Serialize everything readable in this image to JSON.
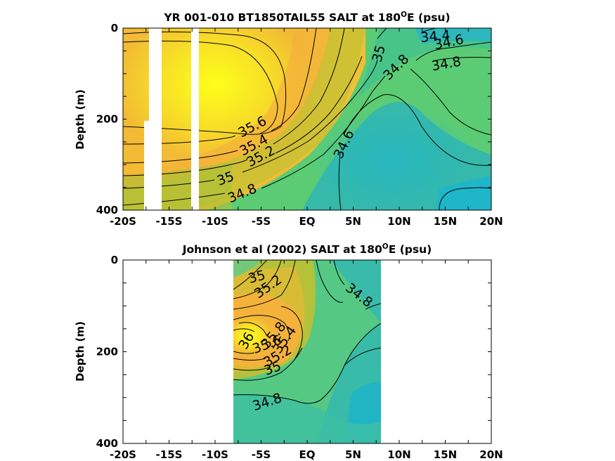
{
  "colors": {
    "salt_low": "#1fb6c9",
    "salt_mid": "#5ccc74",
    "salt_high": "#f7df27",
    "salt_peak": "#ffff1a",
    "orange": "#f4b23a",
    "mask": "#ffffff",
    "contour": "#000000"
  },
  "chart_data": [
    {
      "type": "contour",
      "title_parts": [
        "YR 001-010 BT1850TAIL55 SALT at 180",
        "O",
        "E (psu)"
      ],
      "title": "YR 001-010 BT1850TAIL55 SALT at 180OE (psu)",
      "ylabel": "Depth (m)",
      "xlim": [
        -20,
        20
      ],
      "ylim": [
        0,
        400
      ],
      "y_reversed": true,
      "xticks": [
        -20,
        -15,
        -10,
        -5,
        0,
        5,
        10,
        15,
        20
      ],
      "xtick_labels": [
        "-20S",
        "-15S",
        "-10S",
        "-5S",
        "EQ",
        "5N",
        "10N",
        "15N",
        "20N"
      ],
      "yticks": [
        0,
        200,
        400
      ],
      "ytick_labels": [
        "0",
        "200",
        "400"
      ],
      "data_extent": [
        -20,
        20
      ],
      "contour_levels": [
        34.4,
        34.6,
        34.8,
        35,
        35.2,
        35.4,
        35.6
      ],
      "contour_labels": [
        {
          "text": "34.4",
          "lat": 11.8,
          "depth": 12
        },
        {
          "text": "34.6",
          "lat": 15.7,
          "depth": 30
        },
        {
          "text": "34.8",
          "lat": 15.3,
          "depth": 80
        },
        {
          "text": "35",
          "lat": 7.7,
          "depth": 55
        },
        {
          "text": "34.8",
          "lat": 8.5,
          "depth": 95
        },
        {
          "text": "35.6",
          "lat": -2.8,
          "depth": 210
        },
        {
          "text": "35.4",
          "lat": -3.0,
          "depth": 255
        },
        {
          "text": "35.2",
          "lat": -2.2,
          "depth": 275
        },
        {
          "text": "34.6",
          "lat": 5.5,
          "depth": 255
        },
        {
          "text": "35",
          "lat": -7.5,
          "depth": 330
        },
        {
          "text": "34.8",
          "lat": -5.0,
          "depth": 365
        }
      ]
    },
    {
      "type": "contour",
      "title_parts": [
        "Johnson et al (2002) SALT at 180",
        "O",
        "E (psu)"
      ],
      "title": "Johnson et al (2002) SALT at 180OE (psu)",
      "ylabel": "Depth (m)",
      "xlim": [
        -20,
        20
      ],
      "ylim": [
        0,
        400
      ],
      "y_reversed": true,
      "xticks": [
        -20,
        -15,
        -10,
        -5,
        0,
        5,
        10,
        15,
        20
      ],
      "xtick_labels": [
        "-20S",
        "-15S",
        "-10S",
        "-5S",
        "EQ",
        "5N",
        "10N",
        "15N",
        "20N"
      ],
      "yticks": [
        0,
        200,
        400
      ],
      "ytick_labels": [
        "0",
        "200",
        "400"
      ],
      "data_extent": [
        -8,
        8
      ],
      "contour_levels": [
        34.8,
        35,
        35.2,
        35.4,
        35.6,
        35.8,
        36
      ],
      "contour_labels": [
        {
          "text": "35",
          "lat": -5.3,
          "depth": 40
        },
        {
          "text": "35.2",
          "lat": -4.2,
          "depth": 60
        },
        {
          "text": "34.8",
          "lat": 5.0,
          "depth": 90
        },
        {
          "text": "36",
          "lat": -6.0,
          "depth": 180
        },
        {
          "text": "35.8",
          "lat": -3.8,
          "depth": 175
        },
        {
          "text": "35.6",
          "lat": -4.5,
          "depth": 200
        },
        {
          "text": "35.4",
          "lat": -2.2,
          "depth": 190
        },
        {
          "text": "35.2",
          "lat": -3.5,
          "depth": 230
        },
        {
          "text": "35",
          "lat": -5.0,
          "depth": 240
        },
        {
          "text": "34.8",
          "lat": -4.3,
          "depth": 320
        }
      ]
    }
  ]
}
